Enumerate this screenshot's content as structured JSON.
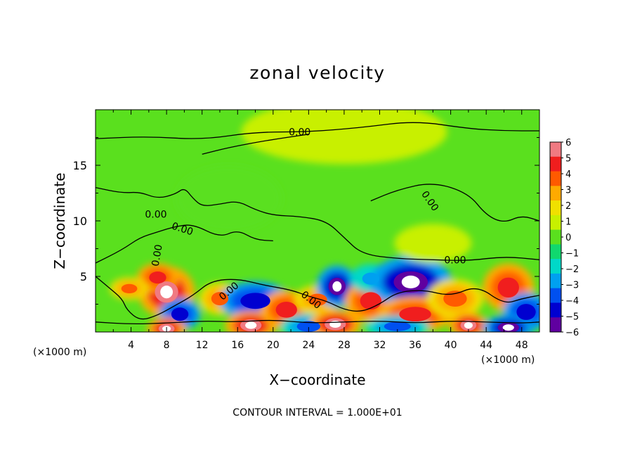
{
  "chart_data": {
    "type": "heatmap",
    "title": "zonal velocity",
    "xlabel": "X−coordinate",
    "ylabel": "Z−coordinate",
    "x_unit_left": "(×1000 m)",
    "x_unit_right": "(×1000 m)",
    "xlim": [
      0,
      50
    ],
    "ylim": [
      0,
      20
    ],
    "x_ticks": [
      4,
      8,
      12,
      16,
      20,
      24,
      28,
      32,
      36,
      40,
      44,
      48
    ],
    "x_tick_labels": [
      "4",
      "8",
      "12",
      "16",
      "20",
      "24",
      "28",
      "32",
      "36",
      "40",
      "44",
      "48"
    ],
    "y_ticks": [
      5,
      10,
      15
    ],
    "y_tick_labels": [
      "5",
      "10",
      "15"
    ],
    "footer": "CONTOUR INTERVAL = 1.000E+01",
    "colorbar": {
      "labels": [
        "6",
        "5",
        "4",
        "3",
        "2",
        "1",
        "0",
        "−1",
        "−2",
        "−3",
        "−4",
        "−5",
        "−6"
      ],
      "colors": [
        "#f07a82",
        "#f01e1e",
        "#ff5a00",
        "#ffaa00",
        "#f0e000",
        "#c8f000",
        "#5ae01e",
        "#10d86e",
        "#00d8c8",
        "#00a0f0",
        "#0050f0",
        "#0000d0",
        "#6000a0"
      ]
    },
    "background_value": 0.2,
    "features": [
      {
        "x": 8,
        "z": 3.6,
        "value": 6,
        "rx": 2.2,
        "rz": 1.6
      },
      {
        "x": 7,
        "z": 4.9,
        "value": 5,
        "rx": 1.6,
        "rz": 0.9
      },
      {
        "x": 3.8,
        "z": 3.9,
        "value": 4,
        "rx": 1.5,
        "rz": 0.7
      },
      {
        "x": 9.5,
        "z": 1.6,
        "value": -5,
        "rx": 1.6,
        "rz": 1.0
      },
      {
        "x": 8,
        "z": 0.3,
        "value": 6,
        "rx": 1.5,
        "rz": 0.7
      },
      {
        "x": 14,
        "z": 3.0,
        "value": 4,
        "rx": 1.6,
        "rz": 1.0
      },
      {
        "x": 18,
        "z": 2.8,
        "value": -5,
        "rx": 2.8,
        "rz": 1.2
      },
      {
        "x": 17.5,
        "z": 0.6,
        "value": 6,
        "rx": 2.0,
        "rz": 0.9
      },
      {
        "x": 21.5,
        "z": 2.0,
        "value": 5,
        "rx": 2.0,
        "rz": 1.2
      },
      {
        "x": 25,
        "z": 2.9,
        "value": 4,
        "rx": 1.8,
        "rz": 0.9
      },
      {
        "x": 24,
        "z": 0.5,
        "value": -4,
        "rx": 2.2,
        "rz": 0.8
      },
      {
        "x": 27.2,
        "z": 4.1,
        "value": -6,
        "rx": 1.6,
        "rz": 1.3
      },
      {
        "x": 27,
        "z": 0.7,
        "value": 6,
        "rx": 2.0,
        "rz": 0.9
      },
      {
        "x": 31,
        "z": 2.8,
        "value": 5,
        "rx": 2.0,
        "rz": 1.3
      },
      {
        "x": 31,
        "z": 4.8,
        "value": -3,
        "rx": 1.6,
        "rz": 0.9
      },
      {
        "x": 35.5,
        "z": 4.5,
        "value": -6,
        "rx": 3.2,
        "rz": 1.6
      },
      {
        "x": 36,
        "z": 1.6,
        "value": 5,
        "rx": 3.0,
        "rz": 1.1
      },
      {
        "x": 34,
        "z": 0.5,
        "value": -4,
        "rx": 2.5,
        "rz": 0.7
      },
      {
        "x": 40.5,
        "z": 3.0,
        "value": 4,
        "rx": 2.2,
        "rz": 1.2
      },
      {
        "x": 42,
        "z": 0.6,
        "value": 6,
        "rx": 1.5,
        "rz": 0.8
      },
      {
        "x": 46.5,
        "z": 4.0,
        "value": 5,
        "rx": 2.0,
        "rz": 1.5
      },
      {
        "x": 48.5,
        "z": 1.8,
        "value": -5,
        "rx": 1.8,
        "rz": 1.2
      },
      {
        "x": 46.5,
        "z": 0.4,
        "value": -6,
        "rx": 2.0,
        "rz": 0.8
      },
      {
        "x": 38,
        "z": 8.0,
        "value": 1,
        "rx": 3.0,
        "rz": 1.2
      },
      {
        "x": 28,
        "z": 18,
        "value": 1,
        "rx": 8.0,
        "rz": 2.0
      },
      {
        "x": 15,
        "z": 12,
        "value": 0,
        "rx": 6.0,
        "rz": 3.0
      }
    ],
    "contours": [
      [
        [
          0,
          17.4
        ],
        [
          6,
          17.6
        ],
        [
          12,
          17.3
        ],
        [
          18,
          18.0
        ],
        [
          24,
          18.0
        ],
        [
          30,
          18.4
        ],
        [
          36,
          19.0
        ],
        [
          42,
          18.3
        ],
        [
          46,
          18.1
        ],
        [
          50,
          18.1
        ]
      ],
      [
        [
          12,
          16.0
        ],
        [
          15,
          16.6
        ],
        [
          19,
          17.2
        ],
        [
          24,
          17.8
        ]
      ],
      [
        [
          0,
          13.0
        ],
        [
          3,
          12.5
        ],
        [
          5,
          12.6
        ],
        [
          7,
          12.0
        ],
        [
          9,
          12.4
        ],
        [
          10,
          13.0
        ],
        [
          11,
          12.0
        ],
        [
          12,
          11.3
        ],
        [
          14,
          11.5
        ],
        [
          16,
          11.8
        ],
        [
          18,
          11.0
        ],
        [
          20,
          10.5
        ],
        [
          23,
          10.4
        ],
        [
          26,
          10.0
        ],
        [
          28,
          8.5
        ],
        [
          30,
          7.0
        ],
        [
          34,
          6.6
        ],
        [
          38,
          6.5
        ],
        [
          42,
          6.4
        ],
        [
          46,
          6.8
        ],
        [
          50,
          6.5
        ]
      ],
      [
        [
          0,
          6.2
        ],
        [
          3,
          7.4
        ],
        [
          5,
          8.5
        ],
        [
          7,
          9.0
        ],
        [
          9,
          9.5
        ],
        [
          11,
          9.7
        ],
        [
          14,
          8.5
        ],
        [
          16,
          9.2
        ],
        [
          18,
          8.3
        ],
        [
          20,
          8.2
        ]
      ],
      [
        [
          31,
          11.8
        ],
        [
          34,
          12.8
        ],
        [
          38,
          13.5
        ],
        [
          42,
          12.5
        ],
        [
          44,
          10.5
        ],
        [
          46,
          9.8
        ],
        [
          48,
          10.5
        ],
        [
          50,
          10.0
        ]
      ],
      [
        [
          0,
          5.0
        ],
        [
          1.5,
          4.0
        ],
        [
          3,
          3.0
        ],
        [
          3.5,
          2.0
        ],
        [
          5,
          1.0
        ],
        [
          7,
          1.5
        ],
        [
          9,
          2.4
        ],
        [
          11,
          3.3
        ],
        [
          13,
          4.6
        ],
        [
          16,
          4.8
        ],
        [
          19,
          4.2
        ],
        [
          22,
          3.8
        ],
        [
          24,
          3.2
        ],
        [
          26,
          2.8
        ],
        [
          28,
          2.0
        ],
        [
          30,
          1.8
        ],
        [
          32,
          2.5
        ],
        [
          34,
          3.6
        ],
        [
          37,
          3.8
        ],
        [
          40,
          3.2
        ],
        [
          43,
          4.2
        ],
        [
          46,
          2.5
        ],
        [
          48,
          3.0
        ],
        [
          50,
          3.3
        ]
      ],
      [
        [
          0,
          0.9
        ],
        [
          4,
          0.7
        ],
        [
          8,
          0.8
        ],
        [
          12,
          1.0
        ],
        [
          16,
          0.9
        ],
        [
          20,
          1.1
        ],
        [
          24,
          0.8
        ],
        [
          28,
          0.9
        ],
        [
          32,
          1.0
        ],
        [
          36,
          0.8
        ],
        [
          40,
          1.0
        ],
        [
          44,
          0.9
        ],
        [
          48,
          0.8
        ],
        [
          50,
          0.9
        ]
      ]
    ],
    "contour_labels": [
      {
        "text": "0.00",
        "x": 23,
        "z": 18.0,
        "angle": 0
      },
      {
        "text": "0.00",
        "x": 6.8,
        "z": 10.6,
        "angle": 0
      },
      {
        "text": "0.00",
        "x": 9.8,
        "z": 9.3,
        "angle": 18
      },
      {
        "text": "0.00",
        "x": 6.9,
        "z": 6.9,
        "angle": -80
      },
      {
        "text": "0.00",
        "x": 15,
        "z": 3.7,
        "angle": -40
      },
      {
        "text": "0.00",
        "x": 24.3,
        "z": 2.9,
        "angle": 38
      },
      {
        "text": "0.00",
        "x": 37.7,
        "z": 11.8,
        "angle": 55
      },
      {
        "text": "0.00",
        "x": 40.5,
        "z": 6.5,
        "angle": 0
      }
    ]
  }
}
